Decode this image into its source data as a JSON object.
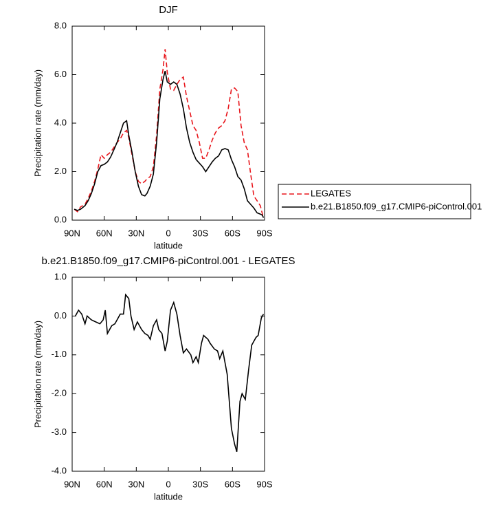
{
  "chart_data": [
    {
      "type": "line",
      "title": "DJF",
      "xlabel": "latitude",
      "ylabel": "Precipitation rate (mm/day)",
      "x": [
        88,
        85,
        82,
        78,
        75,
        72,
        69,
        66,
        63,
        60,
        57,
        54,
        51,
        48,
        45,
        42,
        39,
        37,
        34,
        31,
        28,
        25,
        22,
        20,
        17,
        14,
        11,
        8,
        5,
        3,
        1,
        -2,
        -5,
        -8,
        -11,
        -14,
        -17,
        -20,
        -23,
        -26,
        -29,
        -32,
        -35,
        -38,
        -41,
        -44,
        -47,
        -50,
        -53,
        -56,
        -59,
        -62,
        -65,
        -68,
        -71,
        -74,
        -77,
        -80,
        -83,
        -86,
        -88,
        -89
      ],
      "xlim": [
        90,
        -90
      ],
      "xticks": [
        {
          "value": 90,
          "label": "90N"
        },
        {
          "value": 60,
          "label": "60N"
        },
        {
          "value": 30,
          "label": "30N"
        },
        0,
        {
          "value": -30,
          "label": "30S"
        },
        {
          "value": -60,
          "label": "60S"
        },
        {
          "value": -90,
          "label": "90S"
        }
      ],
      "ylim": [
        0,
        8
      ],
      "yticks": [
        {
          "value": 0,
          "label": "0.0"
        },
        {
          "value": 2,
          "label": "2.0"
        },
        {
          "value": 4,
          "label": "4.0"
        },
        {
          "value": 6,
          "label": "6.0"
        },
        {
          "value": 8,
          "label": "8.0"
        }
      ],
      "legend": "right",
      "series": [
        {
          "name": "LEGATES",
          "color": "#e8151b",
          "linestyle": "dashed",
          "values": [
            0.45,
            0.35,
            0.55,
            0.65,
            0.9,
            1.2,
            1.6,
            2.1,
            2.7,
            2.55,
            2.7,
            2.8,
            3.0,
            3.2,
            3.35,
            3.6,
            3.7,
            3.4,
            2.7,
            2.0,
            1.6,
            1.5,
            1.6,
            1.7,
            1.8,
            2.2,
            3.5,
            5.4,
            6.2,
            7.05,
            6.1,
            5.4,
            5.35,
            5.6,
            5.8,
            5.9,
            5.1,
            4.5,
            3.9,
            3.7,
            3.2,
            2.55,
            2.55,
            2.9,
            3.3,
            3.6,
            3.8,
            3.9,
            4.1,
            4.6,
            5.4,
            5.45,
            5.3,
            3.9,
            3.2,
            2.9,
            1.9,
            1.0,
            0.8,
            0.6,
            0.25,
            0.1
          ]
        },
        {
          "name": "b.e21.B1850.f09_g17.CMIP6-piControl.001",
          "color": "#000000",
          "linestyle": "solid",
          "values": [
            0.45,
            0.4,
            0.45,
            0.6,
            0.8,
            1.1,
            1.5,
            2.0,
            2.25,
            2.3,
            2.4,
            2.6,
            2.9,
            3.2,
            3.6,
            4.0,
            4.1,
            3.5,
            2.8,
            2.0,
            1.4,
            1.05,
            1.0,
            1.1,
            1.4,
            1.9,
            3.2,
            5.0,
            5.8,
            6.15,
            5.7,
            5.6,
            5.7,
            5.6,
            5.2,
            4.6,
            3.8,
            3.2,
            2.8,
            2.5,
            2.35,
            2.2,
            2.0,
            2.2,
            2.4,
            2.55,
            2.65,
            2.9,
            2.95,
            2.9,
            2.5,
            2.2,
            1.8,
            1.65,
            1.3,
            0.8,
            0.65,
            0.5,
            0.3,
            0.25,
            0.2,
            0.1
          ]
        }
      ]
    },
    {
      "type": "line",
      "title": "b.e21.B1850.f09_g17.CMIP6-piControl.001 - LEGATES",
      "xlabel": "latitude",
      "ylabel": "Precipitation rate (mm/day)",
      "x": [
        87,
        84,
        81,
        78,
        76,
        72,
        68,
        64,
        61,
        59,
        57,
        53,
        50,
        45,
        42,
        40,
        37,
        35,
        32,
        29,
        25,
        22,
        19,
        17,
        14,
        11,
        9,
        6,
        3,
        1,
        -2,
        -5,
        -8,
        -11,
        -14,
        -17,
        -21,
        -23,
        -26,
        -28,
        -31,
        -33,
        -37,
        -39,
        -43,
        -46,
        -48,
        -51,
        -55,
        -59,
        -62,
        -64,
        -67,
        -69,
        -72,
        -75,
        -78,
        -82,
        -84,
        -87,
        -89
      ],
      "xlim": [
        90,
        -90
      ],
      "xticks": [
        {
          "value": 90,
          "label": "90N"
        },
        {
          "value": 60,
          "label": "60N"
        },
        {
          "value": 30,
          "label": "30N"
        },
        0,
        {
          "value": -30,
          "label": "30S"
        },
        {
          "value": -60,
          "label": "60S"
        },
        {
          "value": -90,
          "label": "90S"
        }
      ],
      "ylim": [
        -4,
        1
      ],
      "yticks": [
        {
          "value": -4,
          "label": "-4.0"
        },
        {
          "value": -3,
          "label": "-3.0"
        },
        {
          "value": -2,
          "label": "-2.0"
        },
        {
          "value": -1,
          "label": "-1.0"
        },
        {
          "value": 0,
          "label": "0.0"
        },
        {
          "value": 1,
          "label": "1.0"
        }
      ],
      "series": [
        {
          "color": "#000000",
          "linestyle": "solid",
          "values": [
            0.0,
            0.15,
            0.05,
            -0.2,
            0.0,
            -0.1,
            -0.15,
            -0.2,
            -0.1,
            0.15,
            -0.45,
            -0.25,
            -0.2,
            0.05,
            0.05,
            0.55,
            0.45,
            0.0,
            -0.35,
            -0.15,
            -0.35,
            -0.45,
            -0.5,
            -0.6,
            -0.25,
            -0.1,
            -0.35,
            -0.45,
            -0.9,
            -0.65,
            0.15,
            0.35,
            0.05,
            -0.5,
            -0.95,
            -0.85,
            -1.0,
            -1.2,
            -1.05,
            -1.2,
            -0.7,
            -0.5,
            -0.6,
            -0.7,
            -0.85,
            -0.9,
            -1.1,
            -0.9,
            -1.5,
            -2.9,
            -3.3,
            -3.5,
            -2.2,
            -2.0,
            -2.15,
            -1.4,
            -0.75,
            -0.55,
            -0.5,
            -0.05,
            0.05
          ]
        }
      ]
    }
  ]
}
